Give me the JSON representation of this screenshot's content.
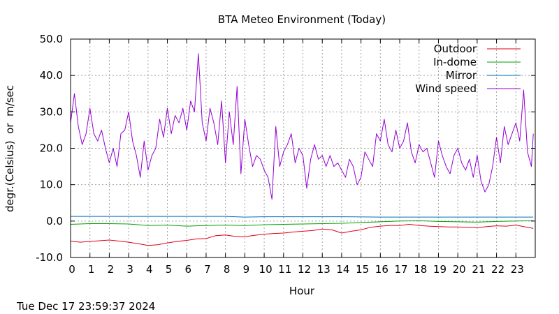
{
  "chart_data": {
    "type": "line",
    "title": "BTA Meteo Environment (Today)",
    "xlabel": "Hour",
    "ylabel": "degr.(Celsius)  or  m/sec",
    "timestamp": "Tue Dec 17 23:59:37 2024",
    "xlim": [
      0,
      24
    ],
    "ylim": [
      -10,
      50
    ],
    "grid": true,
    "legend_position": "top-right",
    "xticks": [
      "0",
      "1",
      "2",
      "3",
      "4",
      "5",
      "6",
      "7",
      "8",
      "9",
      "10",
      "11",
      "12",
      "13",
      "14",
      "15",
      "16",
      "17",
      "18",
      "19",
      "20",
      "21",
      "22",
      "23"
    ],
    "yticks": [
      "-10.0",
      "0.0",
      "10.0",
      "20.0",
      "30.0",
      "40.0",
      "50.0"
    ],
    "series": [
      {
        "name": "Outdoor",
        "color": "#e0001c",
        "x": [
          0,
          0.5,
          1,
          1.5,
          2,
          2.5,
          3,
          3.5,
          4,
          4.5,
          5,
          5.5,
          6,
          6.5,
          7,
          7.5,
          8,
          8.5,
          9,
          9.5,
          10,
          10.5,
          11,
          11.5,
          12,
          12.5,
          13,
          13.5,
          14,
          14.5,
          15,
          15.5,
          16,
          16.5,
          17,
          17.5,
          18,
          18.5,
          19,
          19.5,
          20,
          20.5,
          21,
          21.5,
          22,
          22.5,
          23,
          23.5,
          23.9
        ],
        "values": [
          -5.5,
          -5.8,
          -5.6,
          -5.4,
          -5.2,
          -5.5,
          -5.8,
          -6.2,
          -6.7,
          -6.5,
          -6.0,
          -5.6,
          -5.3,
          -4.9,
          -4.8,
          -4.0,
          -3.8,
          -4.2,
          -4.3,
          -3.9,
          -3.6,
          -3.4,
          -3.3,
          -3.0,
          -2.8,
          -2.6,
          -2.2,
          -2.4,
          -3.3,
          -2.8,
          -2.4,
          -1.7,
          -1.4,
          -1.2,
          -1.2,
          -0.9,
          -1.2,
          -1.4,
          -1.5,
          -1.6,
          -1.6,
          -1.7,
          -1.8,
          -1.5,
          -1.3,
          -1.4,
          -1.1,
          -1.6,
          -2.0
        ]
      },
      {
        "name": "In-dome",
        "color": "#00a000",
        "x": [
          0,
          1,
          2,
          3,
          4,
          5,
          6,
          7,
          8,
          9,
          10,
          11,
          12,
          13,
          14,
          15,
          16,
          17,
          18,
          19,
          20,
          21,
          22,
          23,
          23.9
        ],
        "values": [
          -0.9,
          -0.7,
          -0.7,
          -0.8,
          -1.2,
          -1.1,
          -1.4,
          -1.2,
          -1.1,
          -1.2,
          -1.0,
          -0.9,
          -0.8,
          -0.7,
          -0.6,
          -0.4,
          -0.2,
          0.0,
          0.1,
          -0.1,
          -0.2,
          -0.3,
          -0.1,
          0.0,
          0.1
        ]
      },
      {
        "name": "Mirror",
        "color": "#0070c0",
        "x": [
          0,
          2,
          4,
          6,
          8,
          9,
          10,
          12,
          14,
          16,
          18,
          20,
          22,
          23.9
        ],
        "values": [
          1.3,
          1.3,
          1.3,
          1.3,
          1.3,
          1.1,
          1.2,
          1.2,
          1.2,
          1.1,
          1.1,
          1.1,
          1.1,
          1.1
        ]
      },
      {
        "name": "Wind speed",
        "color": "#9400d3",
        "x": [
          0,
          0.2,
          0.4,
          0.6,
          0.8,
          1.0,
          1.2,
          1.4,
          1.6,
          1.8,
          2.0,
          2.2,
          2.4,
          2.6,
          2.8,
          3.0,
          3.2,
          3.4,
          3.6,
          3.8,
          4.0,
          4.2,
          4.4,
          4.6,
          4.8,
          5.0,
          5.2,
          5.4,
          5.6,
          5.8,
          6.0,
          6.2,
          6.4,
          6.6,
          6.8,
          7.0,
          7.2,
          7.4,
          7.6,
          7.8,
          8.0,
          8.2,
          8.4,
          8.6,
          8.8,
          9.0,
          9.2,
          9.4,
          9.6,
          9.8,
          10.0,
          10.2,
          10.4,
          10.6,
          10.8,
          11.0,
          11.2,
          11.4,
          11.6,
          11.8,
          12.0,
          12.2,
          12.4,
          12.6,
          12.8,
          13.0,
          13.2,
          13.4,
          13.6,
          13.8,
          14.0,
          14.2,
          14.4,
          14.6,
          14.8,
          15.0,
          15.2,
          15.4,
          15.6,
          15.8,
          16.0,
          16.2,
          16.4,
          16.6,
          16.8,
          17.0,
          17.2,
          17.4,
          17.6,
          17.8,
          18.0,
          18.2,
          18.4,
          18.6,
          18.8,
          19.0,
          19.2,
          19.4,
          19.6,
          19.8,
          20.0,
          20.2,
          20.4,
          20.6,
          20.8,
          21.0,
          21.2,
          21.4,
          21.6,
          21.8,
          22.0,
          22.2,
          22.4,
          22.6,
          22.8,
          23.0,
          23.2,
          23.4,
          23.6,
          23.8,
          23.9
        ],
        "values": [
          27,
          35,
          26,
          21,
          24,
          31,
          24,
          22,
          25,
          20,
          16,
          20,
          15,
          24,
          25,
          30,
          22,
          18,
          12,
          22,
          14,
          18,
          20,
          28,
          23,
          31,
          24,
          29,
          27,
          31,
          25,
          33,
          30,
          46,
          27,
          22,
          31,
          27,
          21,
          33,
          16,
          30,
          21,
          37,
          13,
          28,
          21,
          15,
          18,
          17,
          14,
          12,
          6,
          26,
          15,
          19,
          21,
          24,
          16,
          20,
          18,
          9,
          17,
          21,
          17,
          18,
          15,
          18,
          15,
          16,
          14,
          12,
          17,
          15,
          10,
          12,
          19,
          17,
          15,
          24,
          22,
          28,
          21,
          19,
          25,
          20,
          22,
          27,
          19,
          16,
          21,
          19,
          20,
          16,
          12,
          22,
          18,
          15,
          13,
          18,
          20,
          16,
          14,
          17,
          12,
          18,
          11,
          8,
          10,
          15,
          23,
          16,
          26,
          21,
          24,
          27,
          22,
          36,
          19,
          15,
          24
        ]
      }
    ]
  }
}
